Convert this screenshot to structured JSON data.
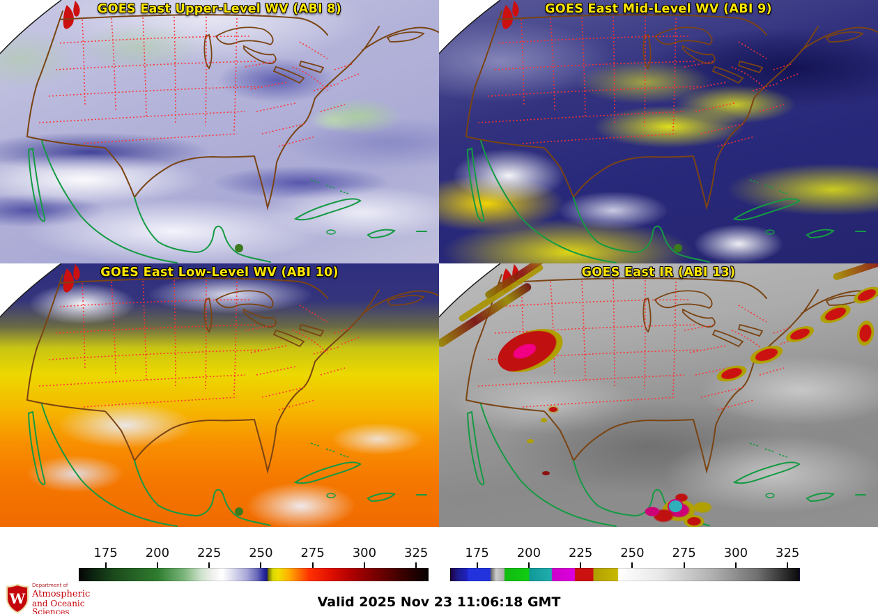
{
  "panels": [
    {
      "key": "abi8",
      "title": "GOES East Upper-Level WV (ABI 8)"
    },
    {
      "key": "abi9",
      "title": "GOES East Mid-Level WV (ABI 9)"
    },
    {
      "key": "abi10",
      "title": "GOES East Low-Level WV (ABI 10)"
    },
    {
      "key": "abi13",
      "title": "GOES East IR (ABI 13)"
    }
  ],
  "footer": {
    "valid_time": "Valid 2025 Nov 23 11:06:18 GMT"
  },
  "logo": {
    "dept_prefix": "Department of",
    "name_line1": "Atmospheric",
    "name_line2": "and Oceanic Sciences",
    "monogram": "W",
    "bg_color": "#000000",
    "text_color": "#c5050c"
  },
  "colors": {
    "panel_title_text": "#ffe600",
    "state_border": "#ff3030",
    "us_coastline": "#7a4413",
    "international_coastline": "#159a43"
  },
  "chart_data": {
    "type": "heatmap",
    "description": "Four-panel GOES East satellite brightness-temperature display with two horizontal colorbars",
    "panels": [
      "GOES East Upper-Level WV (ABI 8)",
      "GOES East Mid-Level WV (ABI 9)",
      "GOES East Low-Level WV (ABI 10)",
      "GOES East IR (ABI 13)"
    ],
    "valid_time": "Valid 2025 Nov 23 11:06:18 GMT",
    "colorbars": [
      {
        "id": "wv",
        "applies_to": [
          "ABI 8",
          "ABI 9",
          "ABI 10"
        ],
        "tick_labels": [
          175,
          200,
          225,
          250,
          275,
          300,
          325
        ],
        "range_estimate": [
          162,
          331
        ],
        "stops": [
          [
            0,
            "#050505"
          ],
          [
            4,
            "#0c2410"
          ],
          [
            10,
            "#1c4a1c"
          ],
          [
            22.5,
            "#2f7d2f"
          ],
          [
            30,
            "#7ab57a"
          ],
          [
            35,
            "#cfe2cc"
          ],
          [
            38.5,
            "#f2f2f0"
          ],
          [
            41,
            "#ffffff"
          ],
          [
            44,
            "#dcdcf0"
          ],
          [
            48,
            "#a8a8d8"
          ],
          [
            51,
            "#6868b8"
          ],
          [
            53,
            "#2828a0"
          ],
          [
            53.9,
            "#181880"
          ],
          [
            54.1,
            "#6a6a00"
          ],
          [
            55.5,
            "#d8d800"
          ],
          [
            57,
            "#f0e000"
          ],
          [
            60,
            "#ffb000"
          ],
          [
            63,
            "#ff7000"
          ],
          [
            66,
            "#ff3000"
          ],
          [
            72,
            "#e01000"
          ],
          [
            78,
            "#b00000"
          ],
          [
            84,
            "#800000"
          ],
          [
            92,
            "#400000"
          ],
          [
            100,
            "#080000"
          ]
        ]
      },
      {
        "id": "ir",
        "applies_to": [
          "ABI 13"
        ],
        "tick_labels": [
          175,
          200,
          225,
          250,
          275,
          300,
          325
        ],
        "range_estimate": [
          162,
          331
        ],
        "stops": [
          [
            0,
            "#20004a"
          ],
          [
            2,
            "#1c1c8c"
          ],
          [
            4.7,
            "#2020c0"
          ],
          [
            5,
            "#2233dd"
          ],
          [
            11.3,
            "#2233dd"
          ],
          [
            11.5,
            "#666666"
          ],
          [
            13,
            "#cccccc"
          ],
          [
            15.3,
            "#aaaaaa"
          ],
          [
            15.5,
            "#11bb11"
          ],
          [
            22.4,
            "#11cc11"
          ],
          [
            22.6,
            "#119999"
          ],
          [
            28.9,
            "#22adad"
          ],
          [
            29.1,
            "#cc00cc"
          ],
          [
            35.5,
            "#dd00dd"
          ],
          [
            35.7,
            "#cc1111"
          ],
          [
            40.8,
            "#cc1111"
          ],
          [
            41,
            "#b0a000"
          ],
          [
            47.9,
            "#c8b800"
          ],
          [
            48.1,
            "#ffffff"
          ],
          [
            60,
            "#e8e8e8"
          ],
          [
            75,
            "#b0b0b0"
          ],
          [
            88,
            "#707070"
          ],
          [
            100,
            "#0a0a0a"
          ]
        ]
      }
    ]
  }
}
